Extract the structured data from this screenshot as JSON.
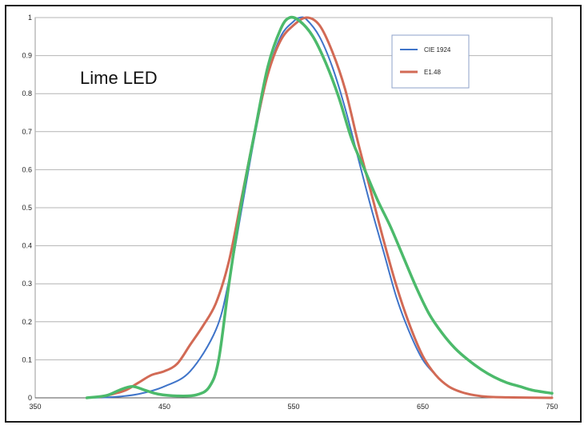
{
  "chart_data": {
    "type": "line",
    "title": "",
    "xlabel": "",
    "ylabel": "",
    "annotation": "Lime LED",
    "xlim": [
      350,
      750
    ],
    "ylim": [
      0,
      1
    ],
    "x_ticks": [
      350,
      450,
      550,
      650,
      750
    ],
    "y_ticks": [
      0,
      0.1,
      0.2,
      0.3,
      0.4,
      0.5,
      0.6,
      0.7,
      0.8,
      0.9,
      1
    ],
    "grid": true,
    "legend_position": "top-right",
    "series": [
      {
        "name": "CIE 1924",
        "color": "#3f74c9",
        "points": [
          [
            390,
            0
          ],
          [
            410,
            0.002
          ],
          [
            430,
            0.01
          ],
          [
            450,
            0.03
          ],
          [
            470,
            0.07
          ],
          [
            490,
            0.18
          ],
          [
            500,
            0.31
          ],
          [
            510,
            0.5
          ],
          [
            520,
            0.69
          ],
          [
            530,
            0.85
          ],
          [
            540,
            0.95
          ],
          [
            550,
            0.99
          ],
          [
            555,
            1.0
          ],
          [
            560,
            0.995
          ],
          [
            570,
            0.95
          ],
          [
            580,
            0.87
          ],
          [
            590,
            0.76
          ],
          [
            600,
            0.63
          ],
          [
            610,
            0.5
          ],
          [
            620,
            0.38
          ],
          [
            630,
            0.26
          ],
          [
            640,
            0.17
          ],
          [
            650,
            0.1
          ],
          [
            660,
            0.06
          ],
          [
            670,
            0.03
          ],
          [
            680,
            0.015
          ],
          [
            690,
            0.007
          ],
          [
            700,
            0.003
          ],
          [
            720,
            0.001
          ],
          [
            750,
            0
          ]
        ]
      },
      {
        "name": "E1.48",
        "color": "#d26a55",
        "points": [
          [
            400,
            0.002
          ],
          [
            410,
            0.01
          ],
          [
            420,
            0.02
          ],
          [
            430,
            0.04
          ],
          [
            440,
            0.06
          ],
          [
            450,
            0.07
          ],
          [
            460,
            0.09
          ],
          [
            470,
            0.14
          ],
          [
            480,
            0.19
          ],
          [
            490,
            0.25
          ],
          [
            500,
            0.36
          ],
          [
            510,
            0.53
          ],
          [
            520,
            0.7
          ],
          [
            530,
            0.85
          ],
          [
            540,
            0.94
          ],
          [
            550,
            0.98
          ],
          [
            560,
            1.0
          ],
          [
            570,
            0.98
          ],
          [
            580,
            0.91
          ],
          [
            590,
            0.81
          ],
          [
            600,
            0.67
          ],
          [
            610,
            0.54
          ],
          [
            620,
            0.41
          ],
          [
            630,
            0.29
          ],
          [
            640,
            0.19
          ],
          [
            650,
            0.11
          ],
          [
            660,
            0.06
          ],
          [
            670,
            0.03
          ],
          [
            680,
            0.015
          ],
          [
            690,
            0.007
          ],
          [
            700,
            0.003
          ],
          [
            720,
            0.001
          ],
          [
            750,
            0
          ]
        ]
      },
      {
        "name": "",
        "color": "#4cba6b",
        "points": [
          [
            390,
            0
          ],
          [
            405,
            0.006
          ],
          [
            415,
            0.02
          ],
          [
            425,
            0.03
          ],
          [
            435,
            0.02
          ],
          [
            445,
            0.01
          ],
          [
            460,
            0.005
          ],
          [
            475,
            0.008
          ],
          [
            485,
            0.03
          ],
          [
            492,
            0.1
          ],
          [
            500,
            0.3
          ],
          [
            510,
            0.52
          ],
          [
            520,
            0.7
          ],
          [
            530,
            0.87
          ],
          [
            540,
            0.97
          ],
          [
            547,
            1.0
          ],
          [
            555,
            0.99
          ],
          [
            565,
            0.95
          ],
          [
            575,
            0.88
          ],
          [
            585,
            0.79
          ],
          [
            595,
            0.68
          ],
          [
            605,
            0.6
          ],
          [
            615,
            0.52
          ],
          [
            625,
            0.45
          ],
          [
            635,
            0.37
          ],
          [
            645,
            0.29
          ],
          [
            655,
            0.22
          ],
          [
            665,
            0.17
          ],
          [
            675,
            0.13
          ],
          [
            685,
            0.1
          ],
          [
            695,
            0.075
          ],
          [
            705,
            0.055
          ],
          [
            715,
            0.04
          ],
          [
            725,
            0.03
          ],
          [
            735,
            0.02
          ],
          [
            750,
            0.012
          ]
        ]
      }
    ]
  }
}
